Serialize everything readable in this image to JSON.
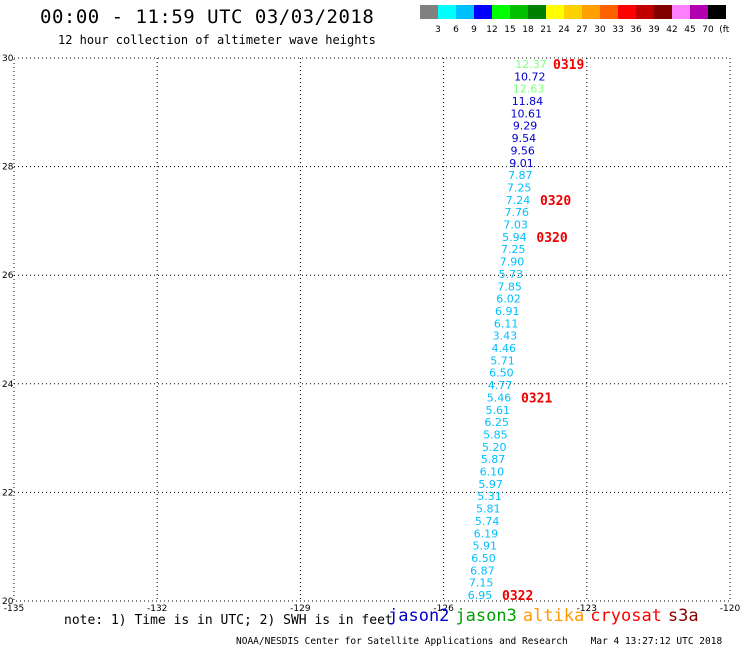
{
  "header": {
    "title": "00:00 - 11:59 UTC 03/03/2018",
    "subtitle": "12 hour collection of altimeter wave heights"
  },
  "colorbar": {
    "labels": [
      "3",
      "6",
      "9",
      "12",
      "15",
      "18",
      "21",
      "24",
      "27",
      "30",
      "33",
      "36",
      "39",
      "42",
      "45",
      "70",
      "(ft)"
    ],
    "colors": [
      "#808080",
      "#00ffff",
      "#00bfff",
      "#0000ff",
      "#00ff00",
      "#00c000",
      "#008000",
      "#ffff00",
      "#ffd000",
      "#ffa000",
      "#ff6000",
      "#ff0000",
      "#c00000",
      "#800000",
      "#ff80ff",
      "#b000b0",
      "#000000"
    ]
  },
  "map": {
    "x_ticks": [
      "-135",
      "-132",
      "-129",
      "-126",
      "-123",
      "-120"
    ],
    "y_ticks": [
      "30",
      "28",
      "26",
      "24",
      "22",
      "20"
    ],
    "xlim": [
      -135,
      -120
    ],
    "ylim": [
      20,
      30
    ],
    "grid": true
  },
  "wave_heights": [
    {
      "value": "12.37",
      "color": "#80ff80"
    },
    {
      "value": "10.72",
      "color": "#0000cc"
    },
    {
      "value": "12.63",
      "color": "#80ff80"
    },
    {
      "value": "11.84",
      "color": "#0000cc"
    },
    {
      "value": "10.61",
      "color": "#0000cc"
    },
    {
      "value": "9.29",
      "color": "#0000cc"
    },
    {
      "value": "9.54",
      "color": "#0000cc"
    },
    {
      "value": "9.56",
      "color": "#0000cc"
    },
    {
      "value": "9.01",
      "color": "#0000cc"
    },
    {
      "value": "7.87",
      "color": "#00bfff"
    },
    {
      "value": "7.25",
      "color": "#00bfff"
    },
    {
      "value": "7.24",
      "color": "#00bfff"
    },
    {
      "value": "7.76",
      "color": "#00bfff"
    },
    {
      "value": "7.03",
      "color": "#00bfff"
    },
    {
      "value": "5.94",
      "color": "#00bfff"
    },
    {
      "value": "7.25",
      "color": "#00bfff"
    },
    {
      "value": "7.90",
      "color": "#00bfff"
    },
    {
      "value": "5.73",
      "color": "#00bfff"
    },
    {
      "value": "7.85",
      "color": "#00bfff"
    },
    {
      "value": "6.02",
      "color": "#00bfff"
    },
    {
      "value": "6.91",
      "color": "#00bfff"
    },
    {
      "value": "6.11",
      "color": "#00bfff"
    },
    {
      "value": "3.43",
      "color": "#00bfff"
    },
    {
      "value": "4.46",
      "color": "#00bfff"
    },
    {
      "value": "5.71",
      "color": "#00bfff"
    },
    {
      "value": "6.50",
      "color": "#00bfff"
    },
    {
      "value": "4.77",
      "color": "#00bfff"
    },
    {
      "value": "5.46",
      "color": "#00bfff"
    },
    {
      "value": "5.61",
      "color": "#00bfff"
    },
    {
      "value": "6.25",
      "color": "#00bfff"
    },
    {
      "value": "5.85",
      "color": "#00bfff"
    },
    {
      "value": "5.20",
      "color": "#00bfff"
    },
    {
      "value": "5.87",
      "color": "#00bfff"
    },
    {
      "value": "6.10",
      "color": "#00bfff"
    },
    {
      "value": "5.97",
      "color": "#00bfff"
    },
    {
      "value": "5.31",
      "color": "#00bfff"
    },
    {
      "value": "5.81",
      "color": "#00bfff"
    },
    {
      "value": "5.74",
      "color": "#00bfff"
    },
    {
      "value": "6.19",
      "color": "#00bfff"
    },
    {
      "value": "5.91",
      "color": "#00bfff"
    },
    {
      "value": "6.50",
      "color": "#00bfff"
    },
    {
      "value": "6.87",
      "color": "#00bfff"
    },
    {
      "value": "7.15",
      "color": "#00bfff"
    },
    {
      "value": "6.95",
      "color": "#00bfff"
    }
  ],
  "time_labels": [
    {
      "text": "0319",
      "after_index": 0
    },
    {
      "text": "0320",
      "after_index": 11
    },
    {
      "text": "0320",
      "after_index": 14
    },
    {
      "text": "0321",
      "after_index": 27
    },
    {
      "text": "0322",
      "after_index": 43
    }
  ],
  "legend": {
    "note": "note: 1) Time is in UTC; 2) SWH is in feet",
    "satellites": [
      {
        "name": "jason2",
        "color": "#0000cc"
      },
      {
        "name": "jason3",
        "color": "#00a000"
      },
      {
        "name": "altika",
        "color": "#ff9900"
      },
      {
        "name": "cryosat",
        "color": "#ff0000"
      },
      {
        "name": "s3a",
        "color": "#880000"
      }
    ]
  },
  "footer": {
    "credit": "NOAA/NESDIS Center for Satellite Applications and Research",
    "timestamp": "Mar  4 13:27:12 UTC 2018"
  }
}
